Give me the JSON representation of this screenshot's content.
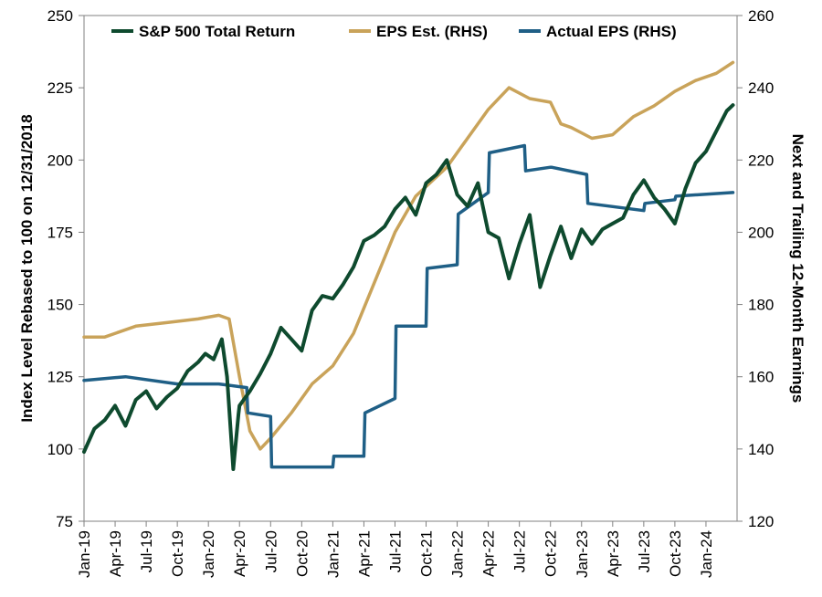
{
  "chart_data": {
    "type": "line",
    "title": "",
    "ylabel": "Index Level Rebased to 100 on 12/31/2018",
    "y2label": "Next and Trailing 12-Month Earnings",
    "xlabel": "",
    "ylim": [
      75,
      250
    ],
    "y2lim": [
      120,
      260
    ],
    "yticks": [
      "75",
      "100",
      "125",
      "150",
      "175",
      "200",
      "225",
      "250"
    ],
    "y2ticks": [
      "120",
      "140",
      "160",
      "180",
      "200",
      "220",
      "240",
      "260"
    ],
    "xticks": [
      "Jan-19",
      "Apr-19",
      "Jul-19",
      "Oct-19",
      "Jan-20",
      "Apr-20",
      "Jul-20",
      "Oct-20",
      "Jan-21",
      "Apr-21",
      "Jul-21",
      "Oct-21",
      "Jan-22",
      "Apr-22",
      "Jul-22",
      "Oct-22",
      "Jan-23",
      "Apr-23",
      "Jul-23",
      "Oct-23",
      "Jan-24"
    ],
    "x_range": [
      "2019-01",
      "2024-04"
    ],
    "legend_position": "top",
    "grid": false,
    "series": [
      {
        "name": "S&P 500 Total Return",
        "axis": "left",
        "color": "#0e4a2e",
        "points": [
          [
            "2019-01",
            99
          ],
          [
            "2019-02",
            107
          ],
          [
            "2019-03",
            110
          ],
          [
            "2019-04",
            115
          ],
          [
            "2019-05",
            108
          ],
          [
            "2019-06",
            117
          ],
          [
            "2019-07",
            120
          ],
          [
            "2019-08",
            114
          ],
          [
            "2019-09",
            118
          ],
          [
            "2019-10",
            121
          ],
          [
            "2019-11",
            127
          ],
          [
            "2019-12",
            130
          ],
          [
            "2019-12.7",
            133
          ],
          [
            "2020-01.5",
            131
          ],
          [
            "2020-02.3",
            138
          ],
          [
            "2020-02.8",
            125
          ],
          [
            "2020-03.4",
            93
          ],
          [
            "2020-03.9",
            112
          ],
          [
            "2020-04",
            115
          ],
          [
            "2020-05",
            120
          ],
          [
            "2020-06",
            126
          ],
          [
            "2020-07",
            133
          ],
          [
            "2020-08",
            142
          ],
          [
            "2020-09",
            138
          ],
          [
            "2020-10",
            134
          ],
          [
            "2020-11",
            148
          ],
          [
            "2020-12",
            153
          ],
          [
            "2021-01",
            152
          ],
          [
            "2021-02",
            157
          ],
          [
            "2021-03",
            163
          ],
          [
            "2021-04",
            172
          ],
          [
            "2021-05",
            174
          ],
          [
            "2021-06",
            177
          ],
          [
            "2021-07",
            183
          ],
          [
            "2021-08",
            187
          ],
          [
            "2021-09",
            181
          ],
          [
            "2021-10",
            192
          ],
          [
            "2021-11",
            195
          ],
          [
            "2021-12",
            200
          ],
          [
            "2022-01",
            188
          ],
          [
            "2022-02",
            184
          ],
          [
            "2022-03",
            192
          ],
          [
            "2022-04",
            175
          ],
          [
            "2022-05",
            173
          ],
          [
            "2022-06",
            159
          ],
          [
            "2022-07",
            171
          ],
          [
            "2022-08",
            181
          ],
          [
            "2022-09",
            156
          ],
          [
            "2022-10",
            167
          ],
          [
            "2022-11",
            177
          ],
          [
            "2022-12",
            166
          ],
          [
            "2023-01",
            176
          ],
          [
            "2023-02",
            171
          ],
          [
            "2023-03",
            176
          ],
          [
            "2023-04",
            178
          ],
          [
            "2023-05",
            180
          ],
          [
            "2023-06",
            188
          ],
          [
            "2023-07",
            193
          ],
          [
            "2023-08",
            187
          ],
          [
            "2023-09",
            183
          ],
          [
            "2023-10",
            178
          ],
          [
            "2023-11",
            190
          ],
          [
            "2023-12",
            199
          ],
          [
            "2024-01",
            203
          ],
          [
            "2024-02",
            210
          ],
          [
            "2024-03",
            217
          ],
          [
            "2024-03.6",
            219
          ]
        ]
      },
      {
        "name": "EPS Est. (RHS)",
        "axis": "right",
        "color": "#c9a35a",
        "points": [
          [
            "2019-01",
            171
          ],
          [
            "2019-03",
            171
          ],
          [
            "2019-06",
            174
          ],
          [
            "2019-09",
            175
          ],
          [
            "2019-12",
            176
          ],
          [
            "2020-02",
            177
          ],
          [
            "2020-03",
            176
          ],
          [
            "2020-04",
            160
          ],
          [
            "2020-05",
            145
          ],
          [
            "2020-06",
            140
          ],
          [
            "2020-07",
            143
          ],
          [
            "2020-09",
            150
          ],
          [
            "2020-11",
            158
          ],
          [
            "2021-01",
            163
          ],
          [
            "2021-03",
            172
          ],
          [
            "2021-05",
            186
          ],
          [
            "2021-07",
            200
          ],
          [
            "2021-09",
            210
          ],
          [
            "2021-12",
            218
          ],
          [
            "2022-02",
            226
          ],
          [
            "2022-04",
            234
          ],
          [
            "2022-06",
            240
          ],
          [
            "2022-08",
            237
          ],
          [
            "2022-10",
            236
          ],
          [
            "2022-11",
            230
          ],
          [
            "2022-12",
            229
          ],
          [
            "2023-02",
            226
          ],
          [
            "2023-04",
            227
          ],
          [
            "2023-06",
            232
          ],
          [
            "2023-08",
            235
          ],
          [
            "2023-10",
            239
          ],
          [
            "2023-12",
            242
          ],
          [
            "2024-02",
            244
          ],
          [
            "2024-03.6",
            247
          ]
        ]
      },
      {
        "name": "Actual EPS (RHS)",
        "axis": "right",
        "color": "#1f5f86",
        "points": [
          [
            "2019-01",
            159
          ],
          [
            "2019-05",
            160
          ],
          [
            "2019-10",
            158
          ],
          [
            "2020-02",
            158
          ],
          [
            "2020-04.7",
            157
          ],
          [
            "2020-04.8",
            150
          ],
          [
            "2020-07",
            149
          ],
          [
            "2020-07.1",
            135
          ],
          [
            "2021-01",
            135
          ],
          [
            "2021-01.1",
            138
          ],
          [
            "2021-04",
            138
          ],
          [
            "2021-04.1",
            150
          ],
          [
            "2021-07",
            154
          ],
          [
            "2021-07.1",
            174
          ],
          [
            "2021-10",
            174
          ],
          [
            "2021-10.1",
            190
          ],
          [
            "2022-01",
            191
          ],
          [
            "2022-01.1",
            205
          ],
          [
            "2022-04",
            211
          ],
          [
            "2022-04.1",
            222
          ],
          [
            "2022-07.5",
            224
          ],
          [
            "2022-07.6",
            217
          ],
          [
            "2022-10",
            218
          ],
          [
            "2022-10.1",
            218
          ],
          [
            "2023-01.5",
            216
          ],
          [
            "2023-01.6",
            208
          ],
          [
            "2023-07",
            206
          ],
          [
            "2023-07.1",
            208
          ],
          [
            "2023-10",
            209
          ],
          [
            "2023-10.1",
            210
          ],
          [
            "2024-03.6",
            211
          ]
        ]
      }
    ]
  }
}
